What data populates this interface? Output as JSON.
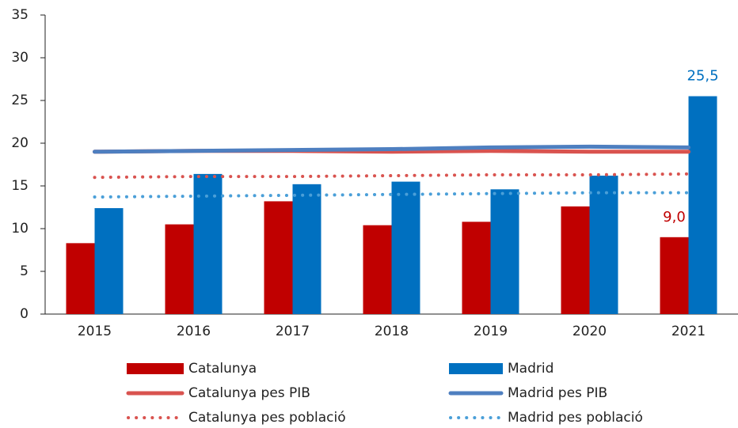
{
  "chart_data": {
    "type": "bar",
    "categories": [
      "2015",
      "2016",
      "2017",
      "2018",
      "2019",
      "2020",
      "2021"
    ],
    "series": [
      {
        "name": "Catalunya",
        "type": "bar",
        "color": "#c00000",
        "values": [
          8.3,
          10.5,
          13.2,
          10.4,
          10.8,
          12.6,
          9.0
        ],
        "value_labels": [
          null,
          null,
          null,
          null,
          null,
          null,
          "9,0"
        ]
      },
      {
        "name": "Madrid",
        "type": "bar",
        "color": "#0070c0",
        "values": [
          12.4,
          16.4,
          15.2,
          15.5,
          14.6,
          16.2,
          25.5
        ],
        "value_labels": [
          null,
          null,
          null,
          null,
          null,
          null,
          "25,5"
        ]
      },
      {
        "name": "Catalunya pes PIB",
        "type": "line",
        "style": "solid",
        "color": "#d9534f",
        "values": [
          19.0,
          19.1,
          19.1,
          19.0,
          19.1,
          19.0,
          19.0
        ]
      },
      {
        "name": "Madrid pes PIB",
        "type": "line",
        "style": "solid",
        "color": "#4e7fc0",
        "values": [
          19.0,
          19.1,
          19.2,
          19.3,
          19.5,
          19.6,
          19.5
        ]
      },
      {
        "name": "Catalunya pes població",
        "type": "line",
        "style": "dotted",
        "color": "#d9534f",
        "values": [
          16.0,
          16.1,
          16.1,
          16.2,
          16.3,
          16.3,
          16.4
        ]
      },
      {
        "name": "Madrid pes població",
        "type": "line",
        "style": "dotted",
        "color": "#4a9fd8",
        "values": [
          13.7,
          13.8,
          13.9,
          14.0,
          14.1,
          14.2,
          14.2
        ]
      }
    ],
    "ylim": [
      0,
      35
    ],
    "yticks": [
      0,
      5,
      10,
      15,
      20,
      25,
      30,
      35
    ],
    "grid": false
  }
}
